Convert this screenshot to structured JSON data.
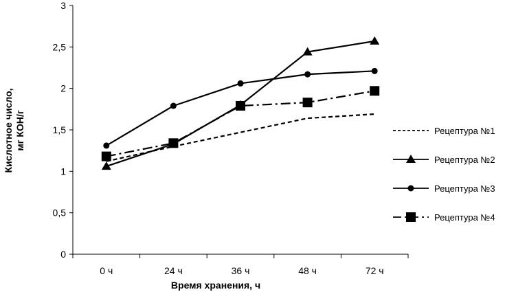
{
  "chart_data": {
    "type": "line",
    "categories": [
      "0 ч",
      "24 ч",
      "36 ч",
      "48 ч",
      "72 ч"
    ],
    "ylim": [
      0,
      3
    ],
    "yticks": [
      0,
      0.5,
      1,
      1.5,
      2,
      2.5,
      3
    ],
    "ytick_labels": [
      "0",
      "0,5",
      "1",
      "1,5",
      "2",
      "2,5",
      "3"
    ],
    "xlabel": "Время хранения, ч",
    "ylabel_lines": [
      "Кислотное число,",
      "мг КОН/г"
    ],
    "grid": false,
    "legend_position": "right",
    "series": [
      {
        "name": "Рецептура №1",
        "values": [
          1.12,
          1.3,
          1.47,
          1.64,
          1.69
        ],
        "marker": "none",
        "dash": "dashed",
        "color": "#000000"
      },
      {
        "name": "Рецептура №2",
        "values": [
          1.06,
          1.33,
          1.8,
          2.44,
          2.57
        ],
        "marker": "triangle",
        "dash": "solid",
        "color": "#000000"
      },
      {
        "name": "Рецептура №3",
        "values": [
          1.31,
          1.79,
          2.06,
          2.17,
          2.21
        ],
        "marker": "circle",
        "dash": "solid",
        "color": "#000000"
      },
      {
        "name": "Рецептура №4",
        "values": [
          1.18,
          1.34,
          1.79,
          1.83,
          1.97
        ],
        "marker": "square",
        "dash": "dashdot",
        "color": "#000000"
      }
    ]
  }
}
